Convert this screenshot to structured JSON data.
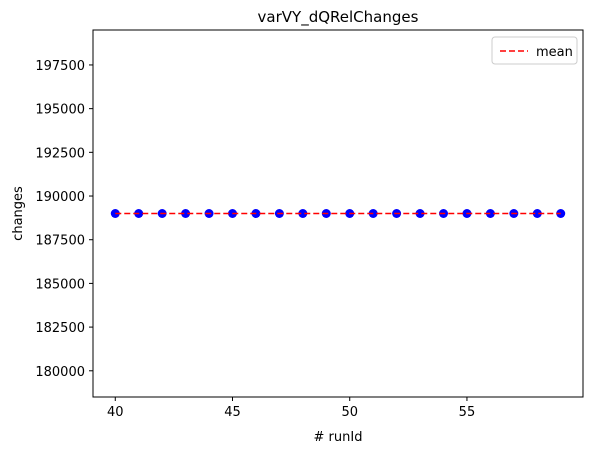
{
  "chart_data": {
    "type": "scatter",
    "title": "varVY_dQRelChanges",
    "xlabel": "# runId",
    "ylabel": "changes",
    "xlim": [
      39.05,
      59.95
    ],
    "ylim": [
      178500,
      199500
    ],
    "xticks": [
      40,
      45,
      50,
      55
    ],
    "yticks": [
      180000,
      182500,
      185000,
      187500,
      190000,
      192500,
      195000,
      197500
    ],
    "grid": false,
    "legend_position": "top-right",
    "series": [
      {
        "kind": "scatter",
        "color": "#0000ff",
        "x": [
          40,
          41,
          42,
          43,
          44,
          45,
          46,
          47,
          48,
          49,
          50,
          51,
          52,
          53,
          54,
          55,
          56,
          57,
          58,
          59
        ],
        "y": [
          189000,
          189000,
          189000,
          189000,
          189000,
          189000,
          189000,
          189000,
          189000,
          189000,
          189000,
          189000,
          189000,
          189000,
          189000,
          189000,
          189000,
          189000,
          189000,
          189000
        ]
      },
      {
        "kind": "line",
        "name": "mean",
        "color": "#ff0000",
        "linestyle": "dashed",
        "x": [
          40,
          59
        ],
        "y": [
          189000,
          189000
        ]
      }
    ]
  }
}
